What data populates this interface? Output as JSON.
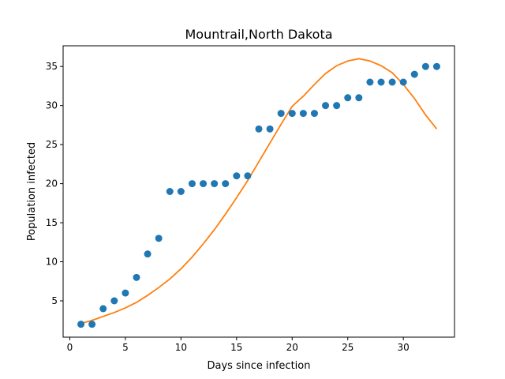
{
  "chart_data": {
    "type": "scatter",
    "title": "Mountrail,North Dakota",
    "xlabel": "Days since infection",
    "ylabel": "Population infected",
    "xlim": [
      -0.6,
      34.6
    ],
    "ylim": [
      0.35,
      37.65
    ],
    "x_ticks": [
      0,
      5,
      10,
      15,
      20,
      25,
      30
    ],
    "y_ticks": [
      5,
      10,
      15,
      20,
      25,
      30,
      35
    ],
    "grid": false,
    "series": [
      {
        "kind": "scatter",
        "color": "#1f77b4",
        "x": [
          1,
          2,
          3,
          4,
          5,
          6,
          7,
          8,
          9,
          10,
          11,
          12,
          13,
          14,
          15,
          16,
          17,
          18,
          19,
          20,
          21,
          22,
          23,
          24,
          25,
          26,
          27,
          28,
          29,
          30,
          31,
          32,
          33
        ],
        "y": [
          2,
          2,
          4,
          5,
          6,
          8,
          11,
          13,
          19,
          19,
          20,
          20,
          20,
          20,
          21,
          21,
          27,
          27,
          29,
          29,
          29,
          29,
          30,
          30,
          31,
          31,
          33,
          33,
          33,
          33,
          34,
          35,
          35
        ]
      },
      {
        "kind": "line",
        "color": "#ff7f0e",
        "x": [
          1,
          2,
          3,
          4,
          5,
          6,
          7,
          8,
          9,
          10,
          11,
          12,
          13,
          14,
          15,
          16,
          17,
          18,
          19,
          20,
          21,
          22,
          23,
          24,
          25,
          26,
          27,
          28,
          29,
          30,
          31,
          32,
          33
        ],
        "y": [
          2.1,
          2.5,
          3.0,
          3.5,
          4.1,
          4.8,
          5.7,
          6.7,
          7.8,
          9.1,
          10.6,
          12.3,
          14.1,
          16.1,
          18.2,
          20.4,
          22.8,
          25.2,
          27.6,
          29.9,
          31.2,
          32.7,
          34.1,
          35.1,
          35.7,
          36.0,
          35.7,
          35.1,
          34.2,
          32.7,
          30.9,
          28.8,
          27.0
        ]
      }
    ]
  }
}
